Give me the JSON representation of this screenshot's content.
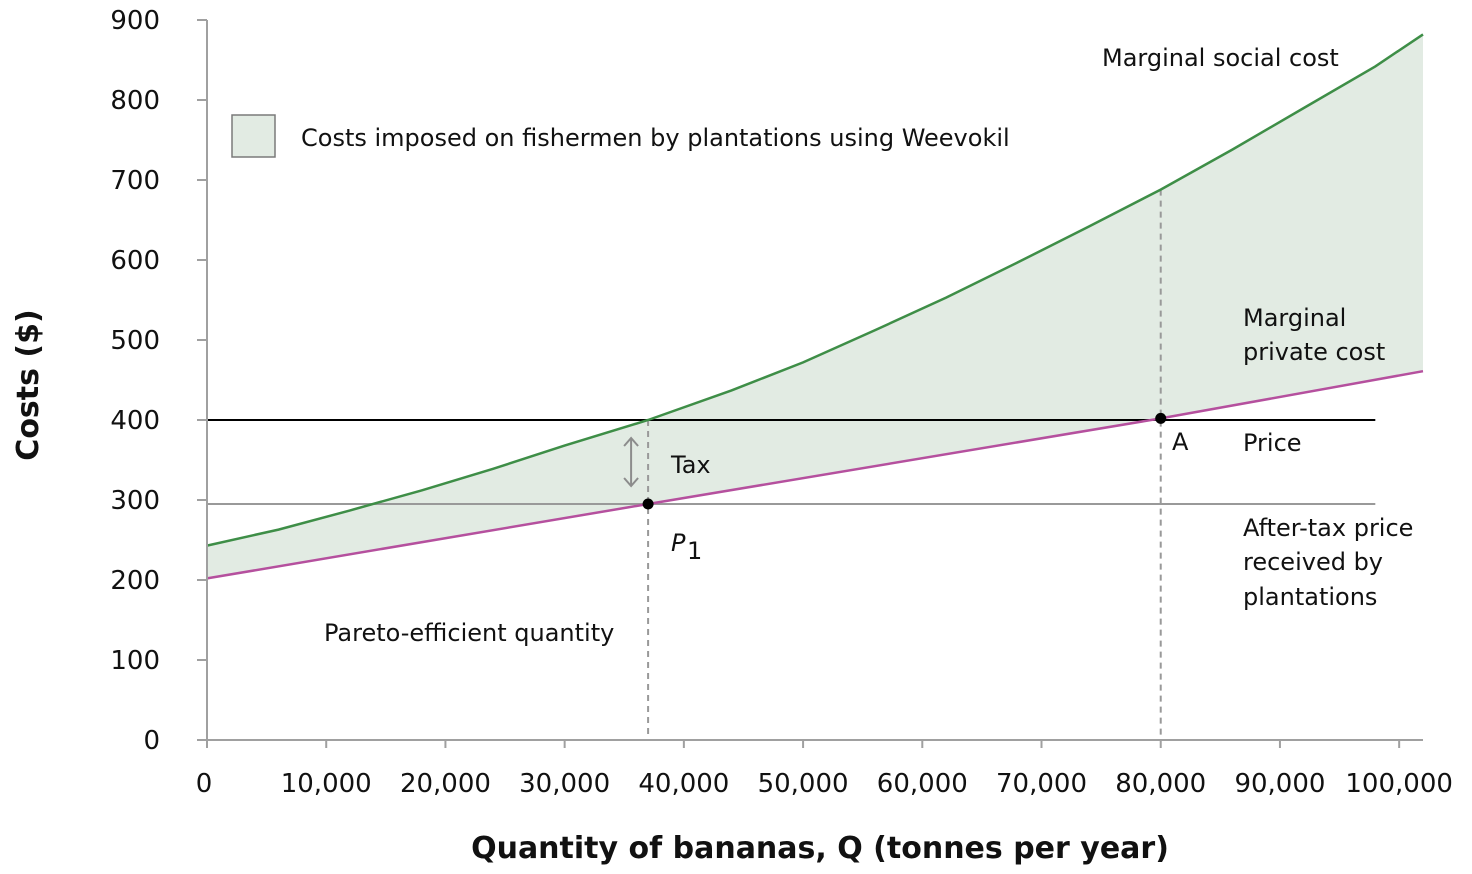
{
  "chart_data": {
    "type": "line",
    "xlabel": "Quantity of bananas, Q (tonnes per year)",
    "ylabel": "Costs ($)",
    "xlim": [
      0,
      102000
    ],
    "ylim": [
      0,
      900
    ],
    "x_ticks": [
      0,
      10000,
      20000,
      30000,
      40000,
      50000,
      60000,
      70000,
      80000,
      90000,
      100000
    ],
    "x_tick_labels": [
      "0",
      "10,000",
      "20,000",
      "30,000",
      "40,000",
      "50,000",
      "60,000",
      "70,000",
      "80,000",
      "90,000",
      "100,000"
    ],
    "y_ticks": [
      0,
      100,
      200,
      300,
      400,
      500,
      600,
      700,
      800,
      900
    ],
    "y_tick_labels": [
      "0",
      "100",
      "200",
      "300",
      "400",
      "500",
      "600",
      "700",
      "800",
      "900"
    ],
    "grid": false,
    "series": [
      {
        "name": "Marginal social cost",
        "color": "#3e8e47",
        "x": [
          0,
          6000,
          12000,
          18000,
          24000,
          30000,
          37000,
          44000,
          50000,
          56000,
          62000,
          68000,
          74000,
          80000,
          86000,
          92000,
          98000,
          102000
        ],
        "y": [
          243,
          263,
          287,
          312,
          339,
          368,
          400,
          437,
          472,
          512,
          553,
          597,
          642,
          688,
          738,
          790,
          842,
          882
        ]
      },
      {
        "name": "Marginal private cost",
        "color": "#b5509e",
        "x": [
          0,
          37000,
          80000,
          102000
        ],
        "y": [
          202,
          295,
          402,
          461
        ]
      }
    ],
    "horizontal_lines": [
      {
        "name": "Price",
        "y": 400,
        "color": "#000000",
        "x_end": 98000
      },
      {
        "name": "After-tax price received by plantations",
        "y": 295,
        "color": "#999999",
        "x_end": 98000
      }
    ],
    "vertical_dashed_lines": [
      {
        "x": 37000,
        "y_top": 400
      },
      {
        "x": 80000,
        "y_top": 688
      }
    ],
    "points": [
      {
        "label": "P1",
        "x": 37000,
        "y": 295
      },
      {
        "label": "A",
        "x": 80000,
        "y": 402
      }
    ],
    "shaded_area": {
      "legend": "Costs imposed on fishermen by plantations using Weevokil",
      "fill": "#e2ebe3",
      "between": [
        "Marginal social cost",
        "Marginal private cost"
      ]
    },
    "annotations": {
      "msc": "Marginal social cost",
      "mpc_line1": "Marginal",
      "mpc_line2": "private cost",
      "price": "Price",
      "after_tax_line1": "After-tax price",
      "after_tax_line2": "received by",
      "after_tax_line3": "plantations",
      "tax": "Tax",
      "point_a": "A",
      "p1_main": "P",
      "p1_sub": "1",
      "pareto": "Pareto-efficient quantity"
    }
  }
}
